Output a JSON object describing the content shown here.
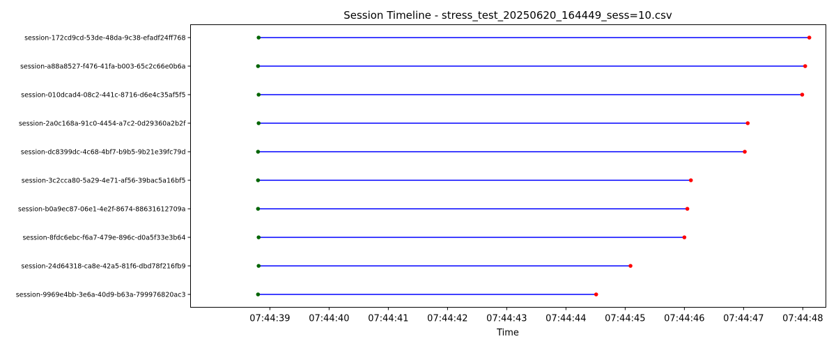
{
  "chart_data": {
    "type": "timeline",
    "title": "Session Timeline - stress_test_20250620_164449_sess=10.csv",
    "xlabel": "Time",
    "ylabel": "",
    "x_ticks": [
      "07:44:39",
      "07:44:40",
      "07:44:41",
      "07:44:42",
      "07:44:43",
      "07:44:44",
      "07:44:45",
      "07:44:46",
      "07:44:47",
      "07:44:48"
    ],
    "x_tick_values": [
      39,
      40,
      41,
      42,
      43,
      44,
      45,
      46,
      47,
      48
    ],
    "xlim": [
      37.66,
      48.39
    ],
    "grid": false,
    "colors": {
      "line": "#0000ff",
      "start": "#006400",
      "end": "#ff0000"
    },
    "series": [
      {
        "name": "session-172cd9cd-53de-48da-9c38-efadf24ff768",
        "start": 38.81,
        "end": 48.11
      },
      {
        "name": "session-a88a8527-f476-41fa-b003-65c2c66e0b6a",
        "start": 38.8,
        "end": 48.04
      },
      {
        "name": "session-010dcad4-08c2-441c-8716-d6e4c35af5f5",
        "start": 38.81,
        "end": 47.99
      },
      {
        "name": "session-2a0c168a-91c0-4454-a7c2-0d29360a2b2f",
        "start": 38.81,
        "end": 47.07
      },
      {
        "name": "session-dc8399dc-4c68-4bf7-b9b5-9b21e39fc79d",
        "start": 38.8,
        "end": 47.02
      },
      {
        "name": "session-3c2cca80-5a29-4e71-af56-39bac5a16bf5",
        "start": 38.8,
        "end": 46.11
      },
      {
        "name": "session-b0a9ec87-06e1-4e2f-8674-88631612709a",
        "start": 38.8,
        "end": 46.05
      },
      {
        "name": "session-8fdc6ebc-f6a7-479e-896c-d0a5f33e3b64",
        "start": 38.81,
        "end": 46.0
      },
      {
        "name": "session-24d64318-ca8e-42a5-81f6-dbd78f216fb9",
        "start": 38.81,
        "end": 45.09
      },
      {
        "name": "session-9969e4bb-3e6a-40d9-b63a-799976820ac3",
        "start": 38.8,
        "end": 44.51
      }
    ]
  }
}
